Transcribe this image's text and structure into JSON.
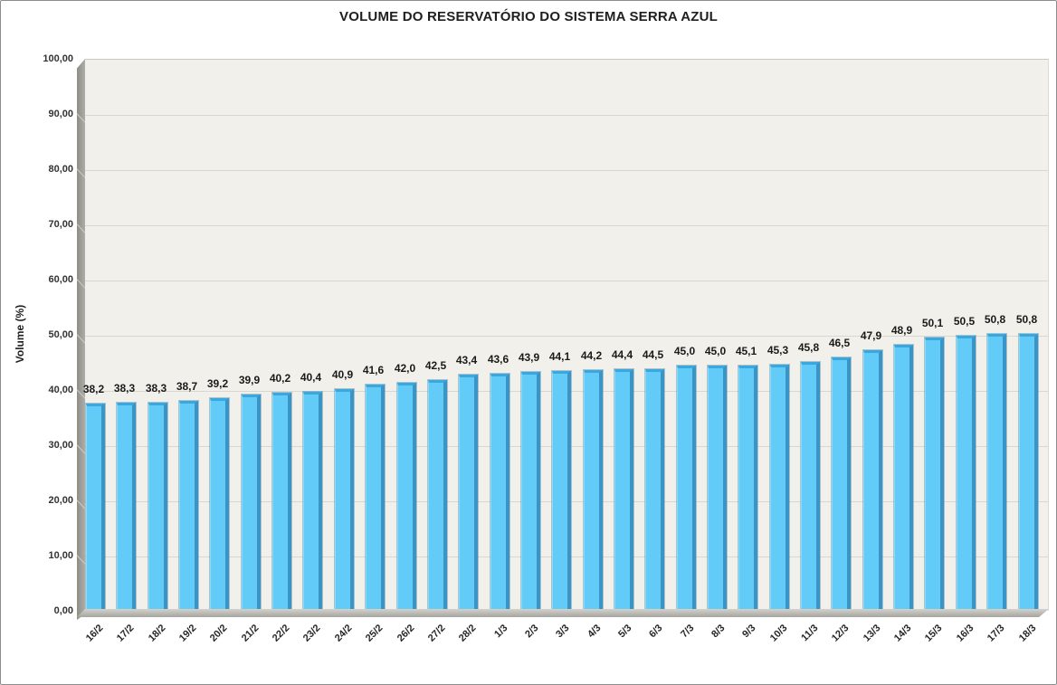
{
  "chart_data": {
    "type": "bar",
    "title": "VOLUME DO RESERVATÓRIO DO SISTEMA SERRA AZUL",
    "xlabel": "",
    "ylabel": "Volume (%)",
    "ylim": [
      0,
      100
    ],
    "ytick_step": 10,
    "ytick_labels": [
      "100,00",
      "90,00",
      "80,00",
      "70,00",
      "60,00",
      "50,00",
      "40,00",
      "30,00",
      "20,00",
      "10,00",
      "0,00"
    ],
    "grid": true,
    "legend": "none",
    "categories": [
      "16/2",
      "17/2",
      "18/2",
      "19/2",
      "20/2",
      "21/2",
      "22/2",
      "23/2",
      "24/2",
      "25/2",
      "26/2",
      "27/2",
      "28/2",
      "1/3",
      "2/3",
      "3/3",
      "4/3",
      "5/3",
      "6/3",
      "7/3",
      "8/3",
      "9/3",
      "10/3",
      "11/3",
      "12/3",
      "13/3",
      "14/3",
      "15/3",
      "16/3",
      "17/3",
      "18/3"
    ],
    "values": [
      38.2,
      38.3,
      38.3,
      38.7,
      39.2,
      39.9,
      40.2,
      40.4,
      40.9,
      41.6,
      42.0,
      42.5,
      43.4,
      43.6,
      43.9,
      44.1,
      44.2,
      44.4,
      44.5,
      45.0,
      45.0,
      45.1,
      45.3,
      45.8,
      46.5,
      47.9,
      48.9,
      50.1,
      50.5,
      50.8,
      50.8
    ],
    "value_labels": [
      "38,2",
      "38,3",
      "38,3",
      "38,7",
      "39,2",
      "39,9",
      "40,2",
      "40,4",
      "40,9",
      "41,6",
      "42,0",
      "42,5",
      "43,4",
      "43,6",
      "43,9",
      "44,1",
      "44,2",
      "44,4",
      "44,5",
      "45,0",
      "45,0",
      "45,1",
      "45,3",
      "45,8",
      "46,5",
      "47,9",
      "48,9",
      "50,1",
      "50,5",
      "50,8",
      "50,8"
    ],
    "bar_color": "#63cbf7",
    "bar_side_color": "#3a95c6",
    "bar_top_color": "#38a8de",
    "plot_background": "#f2f0ea",
    "gridline_color": "#d9d7d1",
    "wall_color": "#9b9a94",
    "style": "3d-column"
  }
}
